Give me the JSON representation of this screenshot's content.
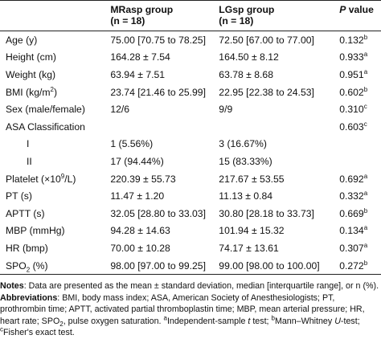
{
  "table": {
    "headers": {
      "group1_line1": "MRasp group",
      "group1_line2": "(n = 18)",
      "group2_line1": "LGsp group",
      "group2_line2": "(n = 18)",
      "pvalue_p": "P",
      "pvalue_rest": "value"
    },
    "rows": [
      {
        "label": "Age (y)",
        "g1": "75.00 [70.75 to 78.25]",
        "g2": "72.50 [67.00 to 77.00]",
        "p": "0.132",
        "sup": "b"
      },
      {
        "label": "Height (cm)",
        "g1": "164.28 ± 7.54",
        "g2": "164.50 ± 8.12",
        "p": "0.933",
        "sup": "a"
      },
      {
        "label": "Weight (kg)",
        "g1": "63.94 ± 7.51",
        "g2": "63.78 ± 8.68",
        "p": "0.951",
        "sup": "a"
      },
      {
        "label_pre": "BMI (kg/m",
        "label_sup": "2",
        "label_post": ")",
        "g1": "23.74 [21.46 to 25.99]",
        "g2": "22.95 [22.38 to 24.53]",
        "p": "0.602",
        "sup": "b"
      },
      {
        "label": "Sex (male/female)",
        "g1": "12/6",
        "g2": "9/9",
        "p": "0.310",
        "sup": "c"
      },
      {
        "label": "ASA Classification",
        "g1": "",
        "g2": "",
        "p": "0.603",
        "sup": "c"
      },
      {
        "label": "I",
        "g1": "1 (5.56%)",
        "g2": "3 (16.67%)",
        "p": "",
        "sup": ""
      },
      {
        "label": "II",
        "g1": "17 (94.44%)",
        "g2": "15 (83.33%)",
        "p": "",
        "sup": ""
      },
      {
        "label_pre": "Platelet (×10",
        "label_sup": "9",
        "label_post": "/L)",
        "g1": "220.39 ± 55.73",
        "g2": "217.67 ± 53.55",
        "p": "0.692",
        "sup": "a"
      },
      {
        "label": "PT (s)",
        "g1": "11.47 ± 1.20",
        "g2": "11.13 ± 0.84",
        "p": "0.332",
        "sup": "a"
      },
      {
        "label": "APTT (s)",
        "g1": "32.05 [28.80 to 33.03]",
        "g2": "30.80 [28.18 to 33.73]",
        "p": "0.669",
        "sup": "b"
      },
      {
        "label": "MBP (mmHg)",
        "g1": "94.28 ± 14.63",
        "g2": "101.94 ± 15.32",
        "p": "0.134",
        "sup": "a"
      },
      {
        "label": "HR (bmp)",
        "g1": "70.00 ± 10.28",
        "g2": "74.17 ± 13.61",
        "p": "0.307",
        "sup": "a"
      },
      {
        "label_pre": "SPO",
        "label_sub": "2",
        "label_post": " (%)",
        "g1": "98.00 [97.00 to 99.25]",
        "g2": "99.00 [98.00 to 100.00]",
        "p": "0.272",
        "sup": "b"
      }
    ]
  },
  "notes": {
    "notes_label": "Notes",
    "notes_text": ": Data are presented as the mean ± standard deviation, median [interquartile range], or n (%).",
    "abbr_label": "Abbreviations",
    "abbr_text_1": ": BMI, body mass index; ASA, American Society of Anesthesiologists; PT, prothrombin time; APTT, activated partial thromboplastin time; MBP, mean arterial pressure; HR, heart rate; SPO",
    "abbr_sub": "2",
    "abbr_text_2": ", pulse oxygen saturation. ",
    "sup_a": "a",
    "fn_a": "Independent-sample ",
    "fn_a_t": "t",
    "fn_a_end": " test; ",
    "sup_b": "b",
    "fn_b": "Mann–Whitney ",
    "fn_b_u": "U",
    "fn_b_end": "-test; ",
    "sup_c": "c",
    "fn_c": "Fisher's exact test."
  }
}
